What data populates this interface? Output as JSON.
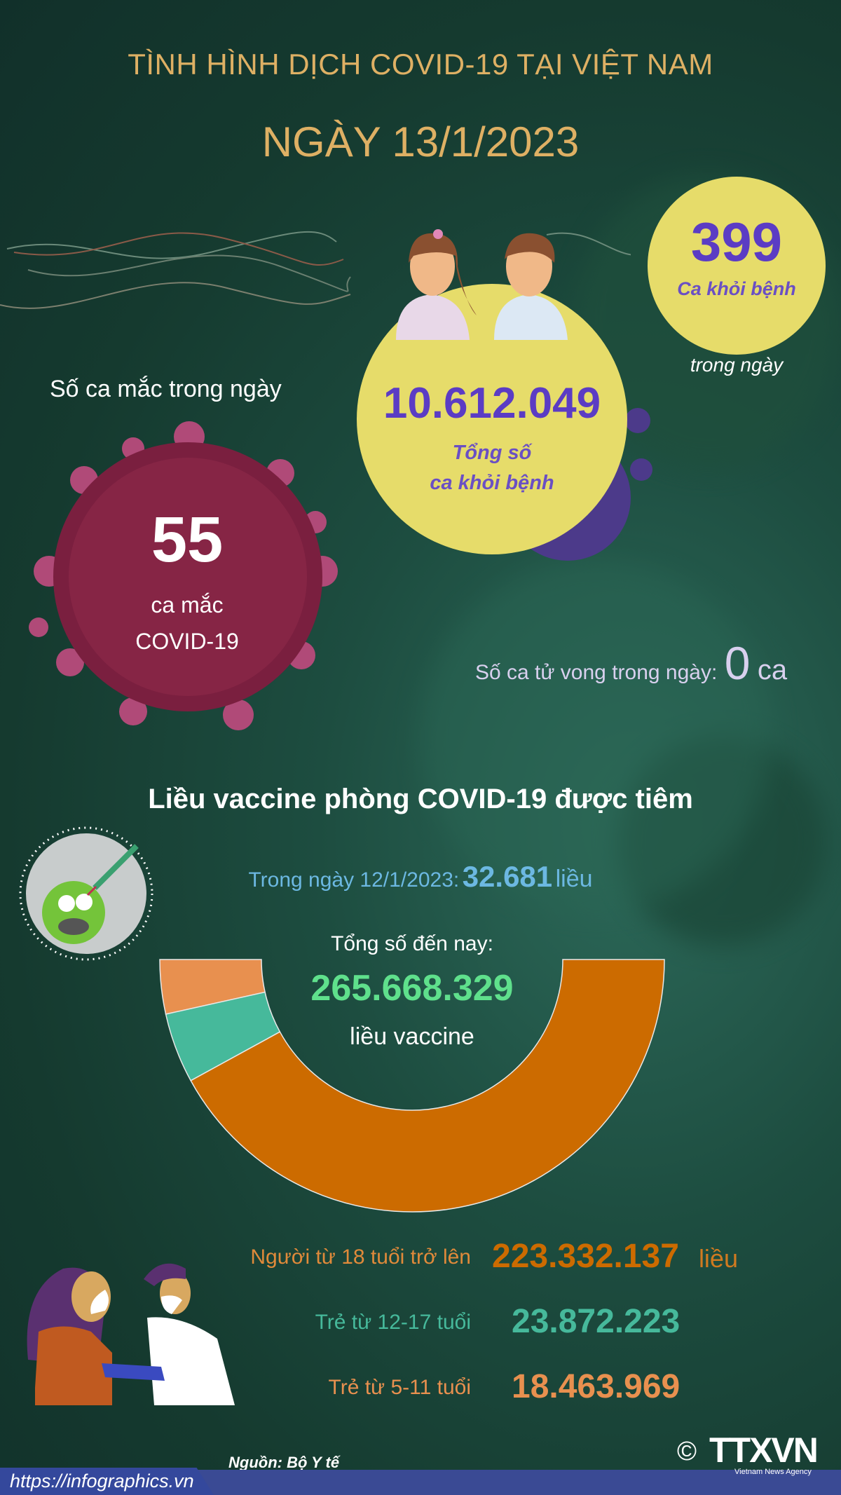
{
  "header": {
    "title": "TÌNH HÌNH DỊCH COVID-19 TẠI VIỆT NAM",
    "date": "NGÀY 13/1/2023"
  },
  "recovered_today": {
    "value": "399",
    "label": "Ca khỏi bệnh",
    "sublabel": "trong ngày"
  },
  "recovered_total": {
    "value": "10.612.049",
    "label_line1": "Tổng số",
    "label_line2": "ca khỏi bệnh"
  },
  "new_cases": {
    "heading": "Số ca mắc trong ngày",
    "value": "55",
    "label_line1": "ca mắc",
    "label_line2": "COVID-19"
  },
  "deaths": {
    "label": "Số ca tử vong trong ngày:",
    "value": "0",
    "unit": "ca"
  },
  "vaccine": {
    "heading": "Liều vaccine phòng COVID-19 được tiêm",
    "today_label": "Trong ngày 12/1/2023:",
    "today_value": "32.681",
    "today_unit": "liều",
    "total_label": "Tổng số đến nay:",
    "total_value": "265.668.329",
    "total_unit": "liều vaccine"
  },
  "chart_data": {
    "type": "pie",
    "style": "half-donut",
    "categories": [
      "Người từ 18 tuổi trở lên",
      "Trẻ từ 12-17 tuổi",
      "Trẻ từ 5-11 tuổi"
    ],
    "values": [
      223332137,
      23872223,
      18463969
    ],
    "display_values": [
      "223.332.137",
      "23.872.223",
      "18.463.969"
    ],
    "unit": "liều",
    "colors": [
      "#cc6b00",
      "#46b99b",
      "#e8904f"
    ]
  },
  "footer": {
    "source": "Nguồn: Bộ Y tế",
    "url": "https://infographics.vn",
    "logo": "TTXVN",
    "logo_sub": "Vietnam News Agency",
    "copyright": "©"
  },
  "colors": {
    "background": "#163a2f",
    "gold": "#deb064",
    "yellow": "#e6dc6a",
    "purple": "#5b3cc4",
    "virus": "#8a2442",
    "green": "#5fe08c",
    "blue": "#6cb8e2"
  }
}
